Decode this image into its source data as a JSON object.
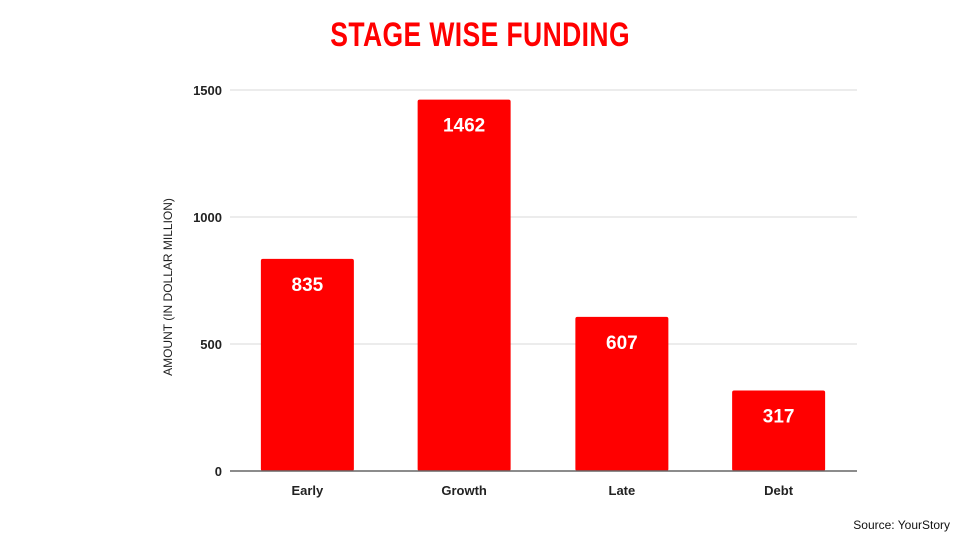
{
  "chart_data": {
    "type": "bar",
    "title": "STAGE WISE FUNDING",
    "xlabel": "",
    "ylabel": "AMOUNT (IN DOLLAR MILLION)",
    "categories": [
      "Early",
      "Growth",
      "Late",
      "Debt"
    ],
    "values": [
      835,
      1462,
      607,
      317
    ],
    "ylim": [
      0,
      1500
    ],
    "yticks": [
      0,
      500,
      1000,
      1500
    ],
    "grid": true,
    "bar_color": "#ff0000",
    "data_labels": true
  },
  "source": "Source: YourStory"
}
